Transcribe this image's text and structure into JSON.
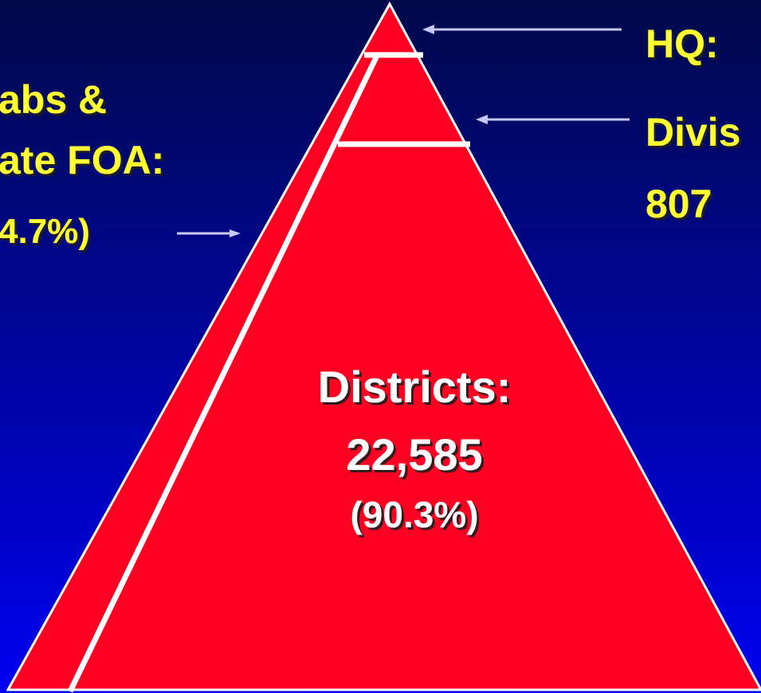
{
  "left_label": {
    "line1": "abs &",
    "line2": "ate FOA:",
    "line3": "4.7%)"
  },
  "right_labels": {
    "hq": "HQ:",
    "division_line1": "Divis",
    "division_line2": "807"
  },
  "center_label": {
    "line1": "Districts:",
    "line2": "22,585",
    "line3": "(90.3%)"
  }
}
